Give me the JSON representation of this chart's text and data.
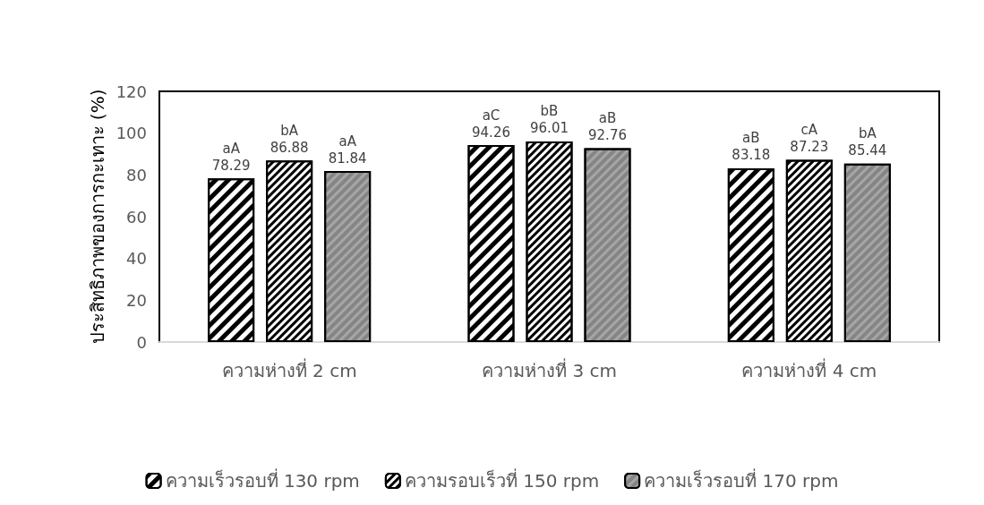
{
  "chart_data": {
    "type": "bar",
    "ylabel": "ประสิทธิภาพของการกะเทาะ (%)",
    "categories": [
      "ความห่างที่ 2 cm",
      "ความห่างที่ 3 cm",
      "ความห่างที่ 4 cm"
    ],
    "series": [
      {
        "name": "ความเร็วรอบที่ 130 rpm",
        "color": "#000000",
        "values": [
          78.29,
          94.26,
          83.18
        ],
        "value_labels": [
          "aA\n78.29",
          "aC\n94.26",
          "aB\n83.18"
        ]
      },
      {
        "name": "ความรอบเร็วที่ 150 rpm",
        "color": "#000000",
        "values": [
          86.88,
          96.01,
          87.23
        ],
        "value_labels": [
          "bA\n86.88",
          "bB\n96.01",
          "cA\n87.23"
        ]
      },
      {
        "name": "ความเร็วรอบที่ 170 rpm",
        "color": "#a6a6a6",
        "values": [
          81.84,
          92.76,
          85.44
        ],
        "value_labels": [
          "aA\n81.84",
          "aB\n92.76",
          "bA\n85.44"
        ]
      }
    ],
    "ylim": [
      0,
      120
    ],
    "yticks": [
      0,
      20,
      40,
      60,
      80,
      100,
      120
    ],
    "grid": false,
    "legend": "bottom"
  }
}
